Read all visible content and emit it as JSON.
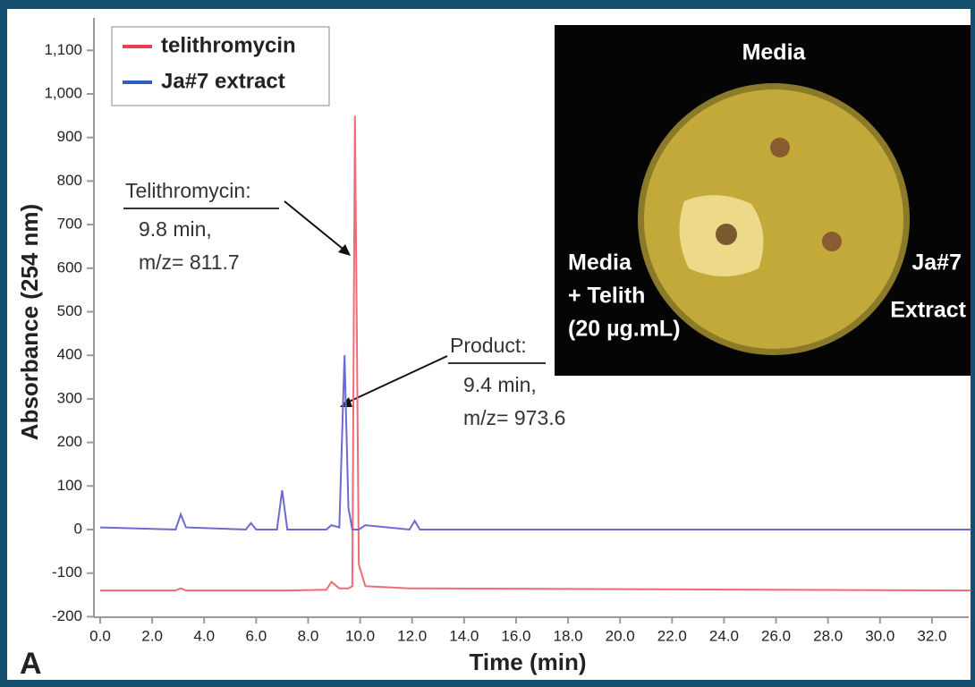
{
  "chart_data": {
    "type": "line",
    "x_label": "Time (min)",
    "y_label": "Absorbance (254 nm)",
    "x": [
      0,
      2.9,
      3.1,
      3.3,
      5.6,
      5.8,
      6.0,
      6.8,
      7.0,
      7.2,
      8.7,
      8.9,
      9.2,
      9.4,
      9.55,
      9.7,
      9.8,
      9.95,
      10.2,
      11.9,
      12.1,
      12.3,
      33.5
    ],
    "series": [
      {
        "name": "telithromycin",
        "color": "#f06a78",
        "legend_color": "#e84050",
        "values": [
          -140,
          -140,
          -135,
          -140,
          -140,
          -140,
          -140,
          -140,
          -140,
          -140,
          -138,
          -120,
          -135,
          -135,
          -135,
          -130,
          950,
          -80,
          -130,
          -135,
          -135,
          -135,
          -140
        ]
      },
      {
        "name": "Ja#7 extract",
        "color": "#6a6ad0",
        "legend_color": "#2a5fc0",
        "values": [
          5,
          0,
          35,
          5,
          0,
          15,
          0,
          0,
          90,
          0,
          0,
          10,
          5,
          400,
          50,
          0,
          0,
          0,
          10,
          0,
          20,
          0,
          0
        ]
      }
    ],
    "xlim": [
      0,
      33.5
    ],
    "ylim": [
      -200,
      1150
    ],
    "xticks": [
      {
        "value": 0,
        "label": "0.0"
      },
      {
        "value": 2,
        "label": "2.0"
      },
      {
        "value": 4,
        "label": "4.0"
      },
      {
        "value": 6,
        "label": "6.0"
      },
      {
        "value": 8,
        "label": "8.0"
      },
      {
        "value": 10,
        "label": "10.0"
      },
      {
        "value": 12,
        "label": "12.0"
      },
      {
        "value": 14,
        "label": "14.0"
      },
      {
        "value": 16,
        "label": "16.0"
      },
      {
        "value": 18,
        "label": "18.0"
      },
      {
        "value": 20,
        "label": "20.0"
      },
      {
        "value": 22,
        "label": "22.0"
      },
      {
        "value": 24,
        "label": "24.0"
      },
      {
        "value": 26,
        "label": "26.0"
      },
      {
        "value": 28,
        "label": "28.0"
      },
      {
        "value": 30,
        "label": "30.0"
      },
      {
        "value": 32,
        "label": "32.0"
      }
    ],
    "yticks": [
      -200,
      -100,
      0,
      100,
      200,
      300,
      400,
      500,
      600,
      700,
      800,
      900,
      {
        "value": 1000,
        "label": "1,000"
      },
      {
        "value": 1100,
        "label": "1,100"
      }
    ],
    "grid": false,
    "annotations": [
      "Telithromycin:",
      "9.8 min,",
      "m/z= 811.7",
      "Product:",
      "9.4 min,",
      "m/z= 973.6",
      "A"
    ],
    "inset_labels": [
      "Media",
      "Media",
      "+ Telith",
      "(20 µg.mL)",
      "Ja#7",
      "Extract"
    ]
  }
}
